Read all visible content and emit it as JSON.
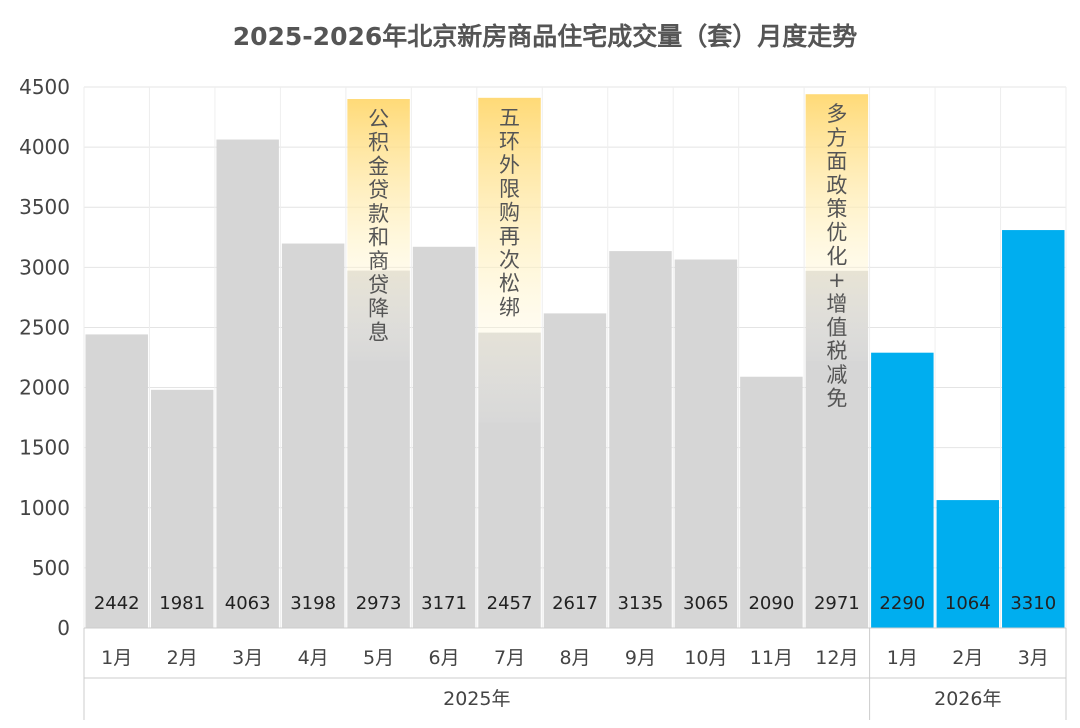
{
  "chart_data": {
    "type": "bar",
    "title": "2025-2026年北京新房商品住宅成交量（套）月度走势",
    "xlabel": "",
    "ylabel": "",
    "ylim": [
      0,
      4500
    ],
    "yticks": [
      0,
      500,
      1000,
      1500,
      2000,
      2500,
      3000,
      3500,
      4000,
      4500
    ],
    "grid": true,
    "categories": [
      "1月",
      "2月",
      "3月",
      "4月",
      "5月",
      "6月",
      "7月",
      "8月",
      "9月",
      "10月",
      "11月",
      "12月",
      "1月",
      "2月",
      "3月"
    ],
    "groups": [
      {
        "label": "2025年",
        "count": 12
      },
      {
        "label": "2026年",
        "count": 3
      }
    ],
    "values": [
      2442,
      1981,
      4063,
      3198,
      2973,
      3171,
      2457,
      2617,
      3135,
      3065,
      2090,
      2971,
      2290,
      1064,
      3310
    ],
    "colors": {
      "year_2025": "#d6d6d6",
      "year_2026": "#00aeef",
      "highlight_top": "#ffd870",
      "highlight_bottom": "#fffdf6"
    },
    "annotations": [
      {
        "index": 4,
        "text": "公积金贷款和商贷降息",
        "top_value": 4400
      },
      {
        "index": 6,
        "text": "五环外限购再次松绑",
        "top_value": 4410
      },
      {
        "index": 11,
        "text": "多方面政策优化+增值税减免",
        "top_value": 4440
      }
    ]
  }
}
